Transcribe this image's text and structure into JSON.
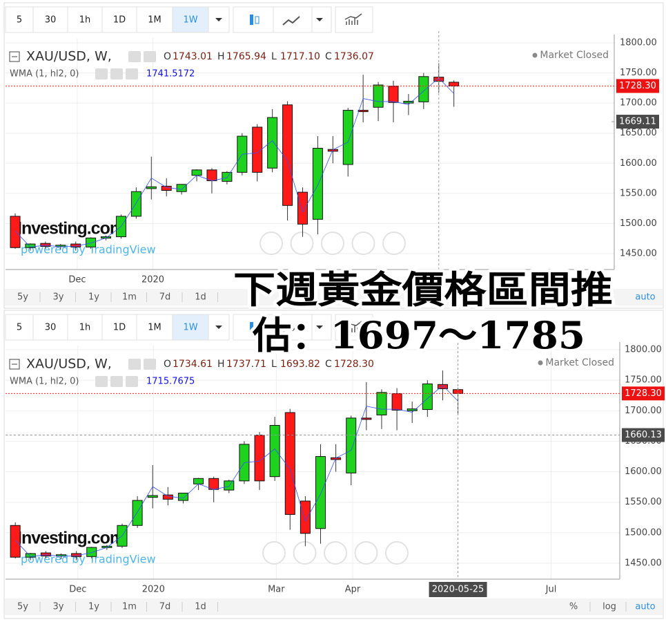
{
  "toolbars": [
    {
      "buttons": [
        {
          "label": "5"
        },
        {
          "label": "30"
        },
        {
          "label": "1h"
        },
        {
          "label": "1D"
        },
        {
          "label": "1M"
        },
        {
          "label": "1W",
          "active": true
        }
      ]
    },
    {
      "buttons": [
        {
          "label": "5"
        },
        {
          "label": "30"
        },
        {
          "label": "1h"
        },
        {
          "label": "1D"
        },
        {
          "label": "1M"
        },
        {
          "label": "1W",
          "active": true
        }
      ]
    }
  ],
  "chart_data": [
    {
      "type": "candlestick",
      "symbol": "XAU/USD, W,",
      "ohlc_legend": [
        [
          "O",
          "1743.01"
        ],
        [
          "H",
          "1765.94"
        ],
        [
          "L",
          "1717.10"
        ],
        [
          "C",
          "1736.07"
        ]
      ],
      "indicator": "WMA (1, hl2, 0)",
      "status": "Market Closed",
      "watermark": "Investing.com",
      "powered_by": "powered by TradingView",
      "up_color": "#1fd21f",
      "down_color": "#ff1a1a",
      "wma_color": "#3050ff",
      "open": [
        1512,
        1460,
        1467,
        1462,
        1466,
        1461,
        1476,
        1478,
        1512,
        1558,
        1562,
        1553,
        1580,
        1589,
        1570,
        1585,
        1660,
        1592,
        1697,
        1552,
        1507,
        1623,
        1598,
        1688,
        1693,
        1728,
        1700,
        1702,
        1743.01,
        1734.61
      ],
      "high": [
        1517,
        1467,
        1470,
        1466,
        1470,
        1477,
        1480,
        1515,
        1560,
        1611,
        1575,
        1565,
        1590,
        1592,
        1587,
        1650,
        1665,
        1690,
        1703,
        1560,
        1645,
        1645,
        1692,
        1747,
        1735,
        1737,
        1715,
        1750,
        1765.94,
        1737.71
      ],
      "low": [
        1458,
        1455,
        1458,
        1457,
        1455,
        1458,
        1472,
        1475,
        1508,
        1540,
        1545,
        1548,
        1570,
        1550,
        1565,
        1580,
        1570,
        1585,
        1505,
        1478,
        1482,
        1600,
        1578,
        1668,
        1670,
        1668,
        1680,
        1690,
        1717.1,
        1693.82
      ],
      "close": [
        1460,
        1466,
        1462,
        1464,
        1461,
        1476,
        1478,
        1512,
        1553,
        1561,
        1555,
        1565,
        1589,
        1571,
        1585,
        1645,
        1585,
        1676,
        1530,
        1499,
        1625,
        1620,
        1688,
        1686,
        1730,
        1701,
        1703,
        1744,
        1736.07,
        1728.3
      ],
      "wma": [
        1487.5,
        1461,
        1464,
        1461.5,
        1462.5,
        1467.5,
        1476,
        1495,
        1534,
        1575.5,
        1560,
        1556.5,
        1580,
        1571,
        1576,
        1615,
        1617.5,
        1637.5,
        1604,
        1519,
        1563.5,
        1622.5,
        1635,
        1707.5,
        1702.5,
        1702.5,
        1697.5,
        1720,
        1741.5172,
        1715.7675
      ],
      "ylim": [
        1423.6,
        1808
      ],
      "yticks": [
        {
          "value": 1450,
          "label": "1450.00"
        },
        {
          "value": 1500,
          "label": "1500.00"
        },
        {
          "value": 1550,
          "label": "1550.00"
        },
        {
          "value": 1600,
          "label": "1600.00"
        },
        {
          "value": 1650,
          "label": "1650.00"
        },
        {
          "value": 1700,
          "label": "1700.00"
        },
        {
          "value": 1750,
          "label": "1750.00"
        },
        {
          "value": 1800,
          "label": "1800.00"
        }
      ],
      "xlim": [
        -0.64,
        39.6
      ],
      "xticks": [
        {
          "value": 4.1,
          "label": "Dec"
        },
        {
          "value": 9.1,
          "label": "2020"
        }
      ],
      "grid": true,
      "last_price": {
        "value": 1728.3,
        "label": "1728.30"
      },
      "crosshair_price": {
        "value": 1669.11,
        "label": "1669.11"
      },
      "ranges": [
        "5y",
        "3y",
        "1y",
        "1m",
        "7d",
        "1d"
      ],
      "scale_buttons": [
        "auto"
      ]
    },
    {
      "type": "candlestick",
      "symbol": "XAU/USD, W,",
      "ohlc_legend": [
        [
          "O",
          "1734.61"
        ],
        [
          "H",
          "1737.71"
        ],
        [
          "L",
          "1693.82"
        ],
        [
          "C",
          "1728.30"
        ]
      ],
      "indicator": "WMA (1, hl2, 0)",
      "status": "Market Closed",
      "watermark": "Investing.com",
      "powered_by": "powered by TradingView",
      "up_color": "#1fd21f",
      "down_color": "#ff1a1a",
      "wma_color": "#3050ff",
      "open": [
        1512,
        1460,
        1467,
        1462,
        1466,
        1461,
        1476,
        1478,
        1512,
        1558,
        1562,
        1553,
        1580,
        1589,
        1570,
        1585,
        1660,
        1592,
        1697,
        1552,
        1507,
        1623,
        1598,
        1688,
        1693,
        1728,
        1700,
        1702,
        1743.01,
        1734.61
      ],
      "high": [
        1517,
        1467,
        1470,
        1466,
        1470,
        1477,
        1480,
        1515,
        1560,
        1611,
        1575,
        1565,
        1590,
        1592,
        1587,
        1650,
        1665,
        1690,
        1703,
        1560,
        1645,
        1645,
        1692,
        1747,
        1735,
        1737,
        1715,
        1750,
        1765.94,
        1737.71
      ],
      "low": [
        1458,
        1455,
        1458,
        1457,
        1455,
        1458,
        1472,
        1475,
        1508,
        1540,
        1545,
        1548,
        1570,
        1550,
        1565,
        1580,
        1570,
        1585,
        1505,
        1478,
        1482,
        1600,
        1578,
        1668,
        1670,
        1668,
        1680,
        1690,
        1717.1,
        1693.82
      ],
      "close": [
        1460,
        1466,
        1462,
        1464,
        1461,
        1476,
        1478,
        1512,
        1553,
        1561,
        1555,
        1565,
        1589,
        1571,
        1585,
        1645,
        1585,
        1676,
        1530,
        1499,
        1625,
        1620,
        1688,
        1686,
        1730,
        1701,
        1703,
        1744,
        1736.07,
        1728.3
      ],
      "wma": [
        1487.5,
        1461,
        1464,
        1461.5,
        1462.5,
        1467.5,
        1476,
        1495,
        1534,
        1575.5,
        1560,
        1556.5,
        1580,
        1571,
        1576,
        1615,
        1617.5,
        1637.5,
        1604,
        1519,
        1563.5,
        1622.5,
        1635,
        1707.5,
        1702.5,
        1702.5,
        1697.5,
        1720,
        1741.5172,
        1715.7675
      ],
      "ylim": [
        1424,
        1806.8
      ],
      "yticks": [
        {
          "value": 1450,
          "label": "1450.00"
        },
        {
          "value": 1500,
          "label": "1500.00"
        },
        {
          "value": 1550,
          "label": "1550.00"
        },
        {
          "value": 1600,
          "label": "1600.00"
        },
        {
          "value": 1650,
          "label": "1650.00"
        },
        {
          "value": 1700,
          "label": "1700.00"
        },
        {
          "value": 1750,
          "label": "1750.00"
        },
        {
          "value": 1800,
          "label": "1800.00"
        }
      ],
      "xlim": [
        -0.64,
        39.6
      ],
      "xticks": [
        {
          "value": 4.1,
          "label": "Dec"
        },
        {
          "value": 9.05,
          "label": "2020"
        },
        {
          "value": 17.1,
          "label": "Mar"
        },
        {
          "value": 22.1,
          "label": "Apr"
        },
        {
          "value": 35.1,
          "label": "Jul"
        }
      ],
      "grid": true,
      "last_price": {
        "value": 1728.3,
        "label": "1728.30"
      },
      "crosshair_price": {
        "value": 1660.13,
        "label": "1660.13"
      },
      "crosshair_date": "2020-05-25",
      "ranges": [
        "5y",
        "3y",
        "1y",
        "1m",
        "7d",
        "1d"
      ],
      "scale_buttons": [
        "%",
        "log",
        "auto"
      ]
    }
  ],
  "overlay": {
    "lines": [
      "下週黃金價格區間推",
      "估：1697～1785"
    ]
  }
}
